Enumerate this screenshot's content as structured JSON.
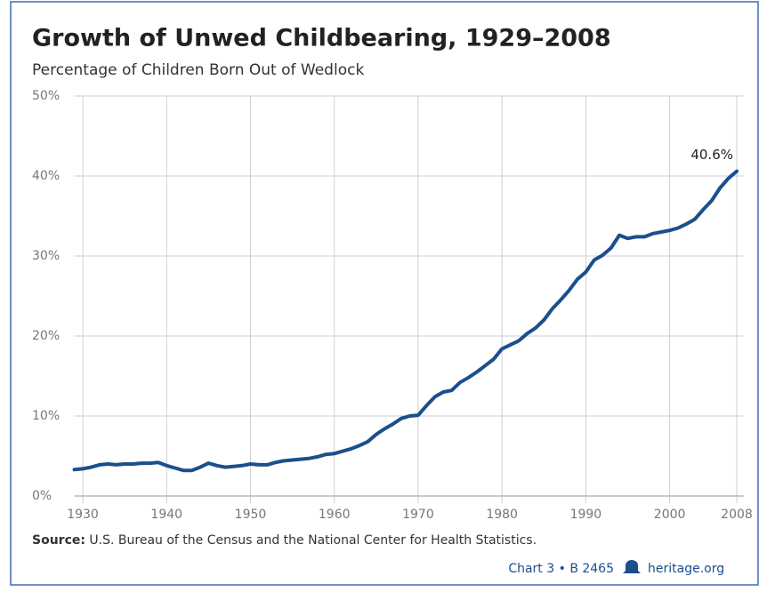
{
  "chart_data": {
    "type": "line",
    "title": "Growth of Unwed Childbearing, 1929–2008",
    "subtitle": "Percentage of Children Born Out of Wedlock",
    "x": [
      1929,
      1930,
      1931,
      1932,
      1933,
      1934,
      1935,
      1936,
      1937,
      1938,
      1939,
      1940,
      1941,
      1942,
      1943,
      1944,
      1945,
      1946,
      1947,
      1948,
      1949,
      1950,
      1951,
      1952,
      1953,
      1954,
      1955,
      1956,
      1957,
      1958,
      1959,
      1960,
      1961,
      1962,
      1963,
      1964,
      1965,
      1966,
      1967,
      1968,
      1969,
      1970,
      1971,
      1972,
      1973,
      1974,
      1975,
      1976,
      1977,
      1978,
      1979,
      1980,
      1981,
      1982,
      1983,
      1984,
      1985,
      1986,
      1987,
      1988,
      1989,
      1990,
      1991,
      1992,
      1993,
      1994,
      1995,
      1996,
      1997,
      1998,
      1999,
      2000,
      2001,
      2002,
      2003,
      2004,
      2005,
      2006,
      2007,
      2008
    ],
    "values": [
      3.3,
      3.4,
      3.6,
      3.9,
      4.0,
      3.9,
      4.0,
      4.0,
      4.1,
      4.1,
      4.2,
      3.8,
      3.5,
      3.2,
      3.2,
      3.6,
      4.1,
      3.8,
      3.6,
      3.7,
      3.8,
      4.0,
      3.9,
      3.9,
      4.2,
      4.4,
      4.5,
      4.6,
      4.7,
      4.9,
      5.2,
      5.3,
      5.6,
      5.9,
      6.3,
      6.8,
      7.7,
      8.4,
      9.0,
      9.7,
      10.0,
      10.1,
      11.3,
      12.4,
      13.0,
      13.2,
      14.2,
      14.8,
      15.5,
      16.3,
      17.1,
      18.4,
      18.9,
      19.4,
      20.3,
      21.0,
      22.0,
      23.4,
      24.5,
      25.7,
      27.1,
      28.0,
      29.5,
      30.1,
      31.0,
      32.6,
      32.2,
      32.4,
      32.4,
      32.8,
      33.0,
      33.2,
      33.5,
      34.0,
      34.6,
      35.8,
      36.9,
      38.5,
      39.7,
      40.6
    ],
    "color": "#1b4f8c",
    "xlim": [
      1929,
      2008
    ],
    "xticks": [
      1930,
      1940,
      1950,
      1960,
      1970,
      1980,
      1990,
      2000,
      2008
    ],
    "ylim": [
      0,
      50
    ],
    "yticks": [
      {
        "value": 0,
        "label": "0%"
      },
      {
        "value": 10,
        "label": "10%"
      },
      {
        "value": 20,
        "label": "20%"
      },
      {
        "value": 30,
        "label": "30%"
      },
      {
        "value": 40,
        "label": "40%"
      },
      {
        "value": 50,
        "label": "50%"
      }
    ],
    "grid": true,
    "annotations": [
      "40.6%"
    ],
    "source_label": "Source:",
    "source": "U.S. Bureau of the Census and the National Center for Health Statistics.",
    "credit": "Chart 3 • B 2465",
    "site": "heritage.org"
  }
}
